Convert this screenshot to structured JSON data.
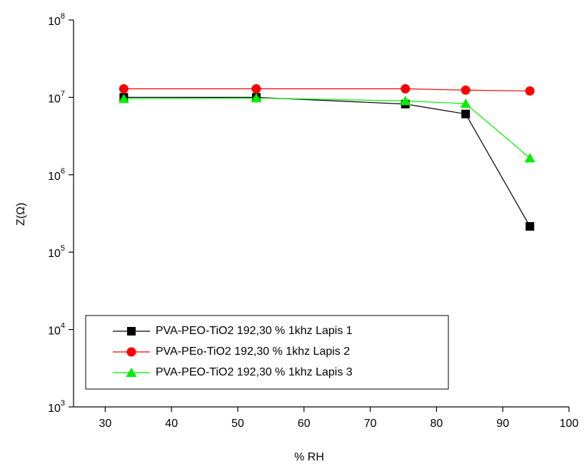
{
  "chart_data": {
    "type": "line",
    "x_label": "% RH",
    "y_label": "Z(Ω)",
    "log_y": true,
    "legend": "lower left",
    "grid": false,
    "xlim": [
      25,
      100
    ],
    "xticks": [
      30,
      40,
      50,
      60,
      70,
      80,
      90,
      100
    ],
    "ylim": [
      1000,
      100000000
    ],
    "yticks": [
      {
        "value": 1000,
        "label": "10",
        "exponent": "3"
      },
      {
        "value": 10000,
        "label": "10",
        "exponent": "4"
      },
      {
        "value": 100000,
        "label": "10",
        "exponent": "5"
      },
      {
        "value": 1000000,
        "label": "10",
        "exponent": "6"
      },
      {
        "value": 10000000,
        "label": "10",
        "exponent": "7"
      },
      {
        "value": 100000000,
        "label": "10",
        "exponent": "8"
      }
    ],
    "x": [
      32.8,
      52.8,
      75.3,
      84.4,
      94.1
    ],
    "series": [
      {
        "name": "PVA-PEO-TiO2 192,30 % 1khz Lapis 1",
        "color": "#000000",
        "marker": "square",
        "values": [
          10000000,
          10000000,
          8200000,
          6100000,
          215000
        ]
      },
      {
        "name": "PVA-PEo-TiO2 192,30 % 1khz Lapis 2",
        "color": "#ff0000",
        "marker": "circle",
        "values": [
          12900000,
          12900000,
          12900000,
          12400000,
          12100000
        ]
      },
      {
        "name": "PVA-PEO-TiO2 192,30 % 1khz Lapis 3",
        "color": "#00ee00",
        "marker": "triangle",
        "values": [
          9600000,
          9800000,
          9000000,
          8300000,
          1640000
        ]
      }
    ]
  }
}
